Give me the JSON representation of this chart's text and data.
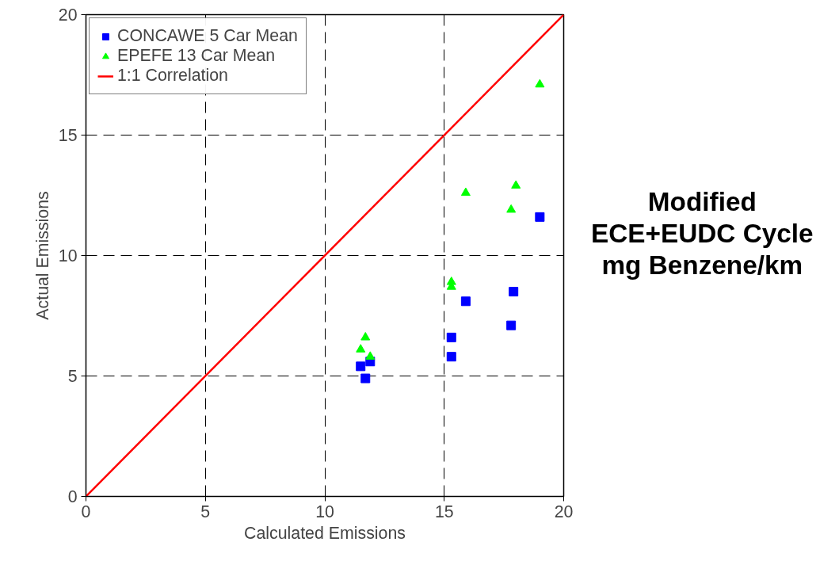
{
  "chart_data": {
    "type": "scatter",
    "title": "Modified\nECE+EUDC Cycle\nmg Benzene/km",
    "xlabel": "Calculated Emissions",
    "ylabel": "Actual Emissions",
    "xlim": [
      0,
      20
    ],
    "ylim": [
      0,
      20
    ],
    "xticks": [
      0,
      5,
      10,
      15,
      20
    ],
    "yticks": [
      0,
      5,
      10,
      15,
      20
    ],
    "grid": true,
    "legend": "top left",
    "series": [
      {
        "name": "CONCAWE 5 Car Mean",
        "color": "#0000ff",
        "marker": "square",
        "x": [
          11.5,
          11.7,
          11.9,
          15.3,
          15.3,
          15.9,
          17.8,
          17.9,
          19.0
        ],
        "values": [
          5.4,
          4.9,
          5.6,
          6.6,
          5.8,
          8.1,
          7.1,
          8.5,
          11.6
        ]
      },
      {
        "name": "EPEFE 13 Car Mean",
        "color": "#00ff00",
        "marker": "triangle",
        "x": [
          11.5,
          11.7,
          11.9,
          15.3,
          15.3,
          15.9,
          17.8,
          18.0,
          19.0
        ],
        "values": [
          6.1,
          6.6,
          5.8,
          8.9,
          8.7,
          12.6,
          11.9,
          12.9,
          17.1
        ]
      },
      {
        "name": "1:1 Correlation",
        "type": "line",
        "color": "#ff0000",
        "x": [
          0,
          20
        ],
        "values": [
          0,
          20
        ]
      }
    ]
  }
}
